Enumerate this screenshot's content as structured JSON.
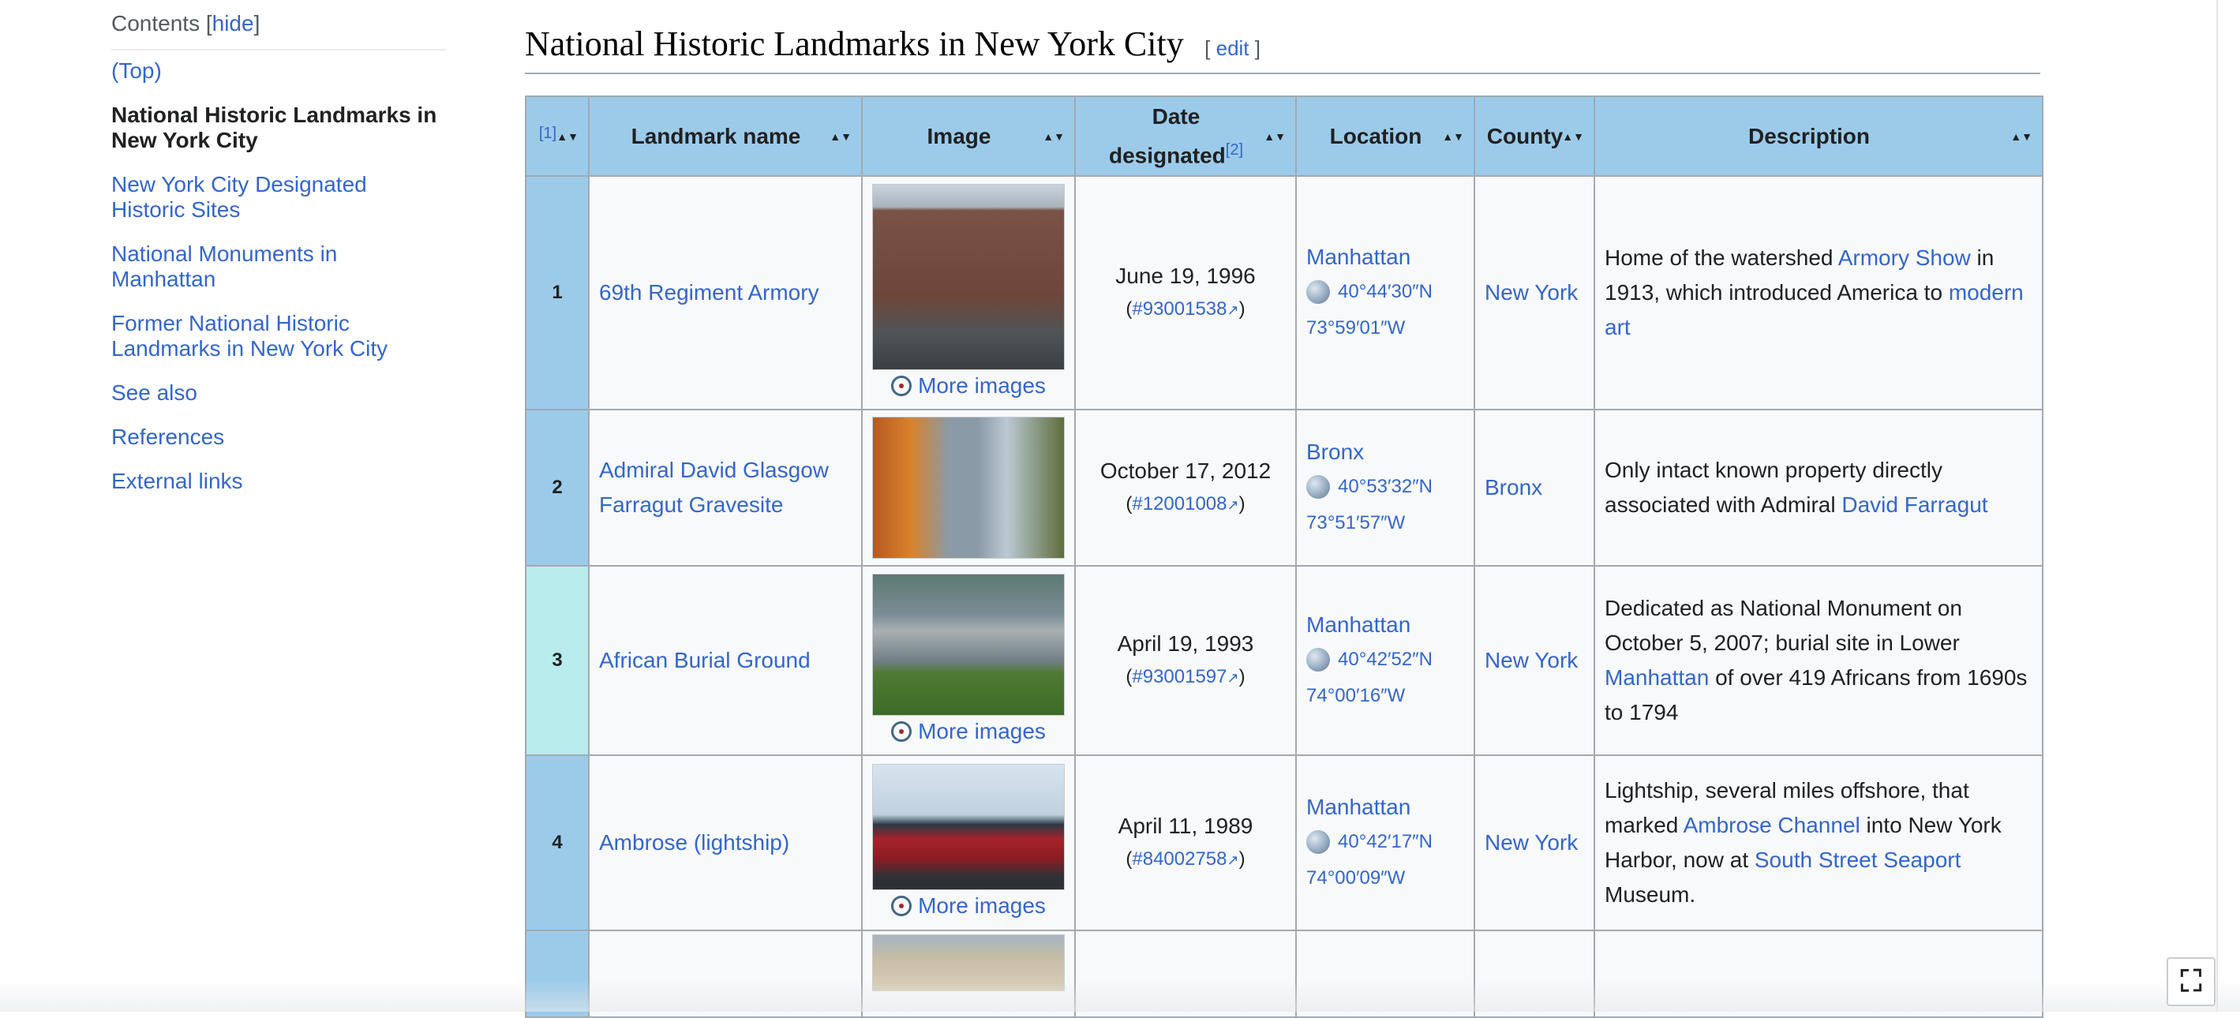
{
  "toc": {
    "title": "Contents",
    "bracket_open": " [",
    "hide_label": "hide",
    "bracket_close": "]",
    "items": [
      {
        "label": "(Top)"
      },
      {
        "label": "National Historic Landmarks in New York City"
      },
      {
        "label": "New York City Designated Historic Sites"
      },
      {
        "label": "National Monuments in Manhattan"
      },
      {
        "label": "Former National Historic Landmarks in New York City"
      },
      {
        "label": "See also"
      },
      {
        "label": "References"
      },
      {
        "label": "External links"
      }
    ]
  },
  "section": {
    "title": "National Historic Landmarks in New York City",
    "edit_open": "[ ",
    "edit_label": "edit",
    "edit_close": " ]"
  },
  "table": {
    "headers": {
      "num_ref": "[1]",
      "name": "Landmark name",
      "image": "Image",
      "date_line1": "Date",
      "date_line2": "designated",
      "date_ref": "[2]",
      "location": "Location",
      "county": "County",
      "description": "Description"
    },
    "sort_glyph": "▲▼",
    "more_images": "More images",
    "ext_glyph": "↗",
    "rows": [
      {
        "num": "1",
        "name": "69th Regiment Armory",
        "date": "June 19, 1996",
        "ref": "#93001538",
        "location": "Manhattan",
        "lat": "40°44′30″N",
        "lon": "73°59′01″W",
        "county": "New York",
        "desc": {
          "t1": "Home of the watershed ",
          "l1": "Armory Show",
          "t2": " in 1913, which introduced America to ",
          "l2": "modern art",
          "t3": ""
        }
      },
      {
        "num": "2",
        "name": "Admiral David Glasgow Farragut Gravesite",
        "date": "October 17, 2012",
        "ref": "#12001008",
        "location": "Bronx",
        "lat": "40°53′32″N",
        "lon": "73°51′57″W",
        "county": "Bronx",
        "desc": {
          "t1": "Only intact known property directly associated with Admiral ",
          "l1": "David Farragut",
          "t2": "",
          "l2": "",
          "t3": ""
        }
      },
      {
        "num": "3",
        "name": "African Burial Ground",
        "date": "April 19, 1993",
        "ref": "#93001597",
        "location": "Manhattan",
        "lat": "40°42′52″N",
        "lon": "74°00′16″W",
        "county": "New York",
        "desc": {
          "t1": "Dedicated as National Monument on October 5, 2007; burial site in Lower ",
          "l1": "Manhattan",
          "t2": " of over 419 Africans from 1690s to 1794",
          "l2": "",
          "t3": ""
        }
      },
      {
        "num": "4",
        "name": "Ambrose (lightship)",
        "date": "April 11, 1989",
        "ref": "#84002758",
        "location": "Manhattan",
        "lat": "40°42′17″N",
        "lon": "74°00′09″W",
        "county": "New York",
        "desc": {
          "t1": "Lightship, several miles offshore, that marked ",
          "l1": "Ambrose Channel",
          "t2": " into New York Harbor, now at ",
          "l2": "South Street Seaport",
          "t3": " Museum."
        }
      }
    ]
  },
  "colors": {
    "header_bg": "#9ccbea",
    "teal_num_bg": "#b9ecec",
    "link": "#3366cc",
    "cell_bg": "#f8f9fa",
    "border": "#a2a9b1"
  },
  "icons": {
    "globe": "globe-icon",
    "commons": "wikimedia-commons-icon",
    "fullscreen": "fullscreen-icon",
    "external": "external-link-icon"
  },
  "fullscreen_glyph": "⛶"
}
